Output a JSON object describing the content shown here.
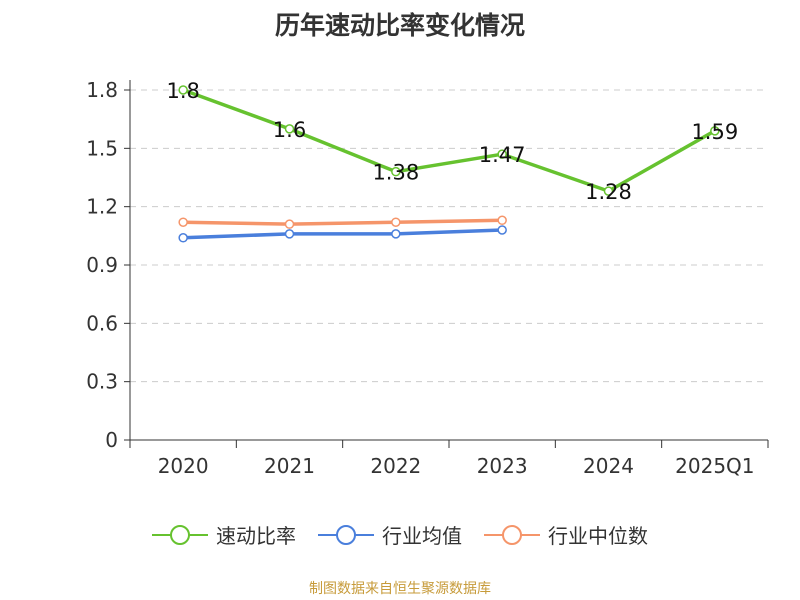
{
  "title": "历年速动比率变化情况",
  "source": "制图数据来自恒生聚源数据库",
  "legend": [
    {
      "label": "速动比率",
      "color": "#66c22f"
    },
    {
      "label": "行业均值",
      "color": "#4a7fdc"
    },
    {
      "label": "行业中位数",
      "color": "#f5956a"
    }
  ],
  "chart_data": {
    "type": "line",
    "categories": [
      "2020",
      "2021",
      "2022",
      "2023",
      "2024",
      "2025Q1"
    ],
    "ylim": [
      0,
      1.8
    ],
    "yticks": [
      0,
      0.3,
      0.6,
      0.9,
      1.2,
      1.5,
      1.8
    ],
    "grid": true,
    "legend_position": "bottom",
    "series": [
      {
        "name": "速动比率",
        "color": "#66c22f",
        "values": [
          1.8,
          1.6,
          1.38,
          1.47,
          1.28,
          1.59
        ],
        "labels": true
      },
      {
        "name": "行业均值",
        "color": "#4a7fdc",
        "values": [
          1.04,
          1.06,
          1.06,
          1.08,
          null,
          null
        ],
        "labels": false
      },
      {
        "name": "行业中位数",
        "color": "#f5956a",
        "values": [
          1.12,
          1.11,
          1.12,
          1.13,
          null,
          null
        ],
        "labels": false
      }
    ]
  }
}
